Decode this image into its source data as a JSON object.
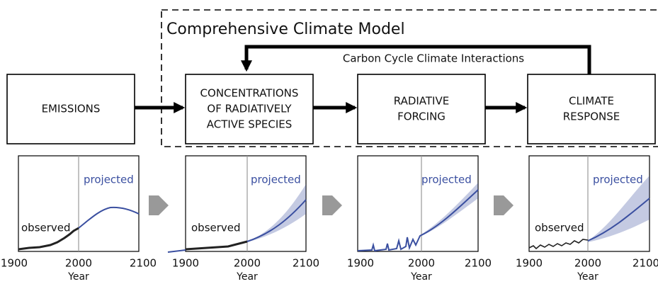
{
  "title": "Comprehensive Climate Model",
  "feedback_label": "Carbon Cycle Climate Interactions",
  "boxes": [
    {
      "lines": [
        "EMISSIONS"
      ]
    },
    {
      "lines": [
        "CONCENTRATIONS",
        "OF RADIATIVELY",
        "ACTIVE SPECIES"
      ]
    },
    {
      "lines": [
        "RADIATIVE",
        "FORCING"
      ]
    },
    {
      "lines": [
        "CLIMATE",
        "RESPONSE"
      ]
    }
  ],
  "panels": [
    {
      "observed": "observed",
      "projected": "projected",
      "xticks": [
        1900,
        2000,
        2100
      ],
      "xlabel": "Year"
    },
    {
      "observed": "observed",
      "projected": "projected",
      "xticks": [
        1900,
        2000,
        2100
      ],
      "xlabel": "Year"
    },
    {
      "projected": "projected",
      "xticks": [
        1900,
        2000,
        2100
      ],
      "xlabel": "Year"
    },
    {
      "observed": "observed",
      "projected": "projected",
      "xticks": [
        1900,
        2000,
        2100
      ],
      "xlabel": "Year"
    }
  ]
}
